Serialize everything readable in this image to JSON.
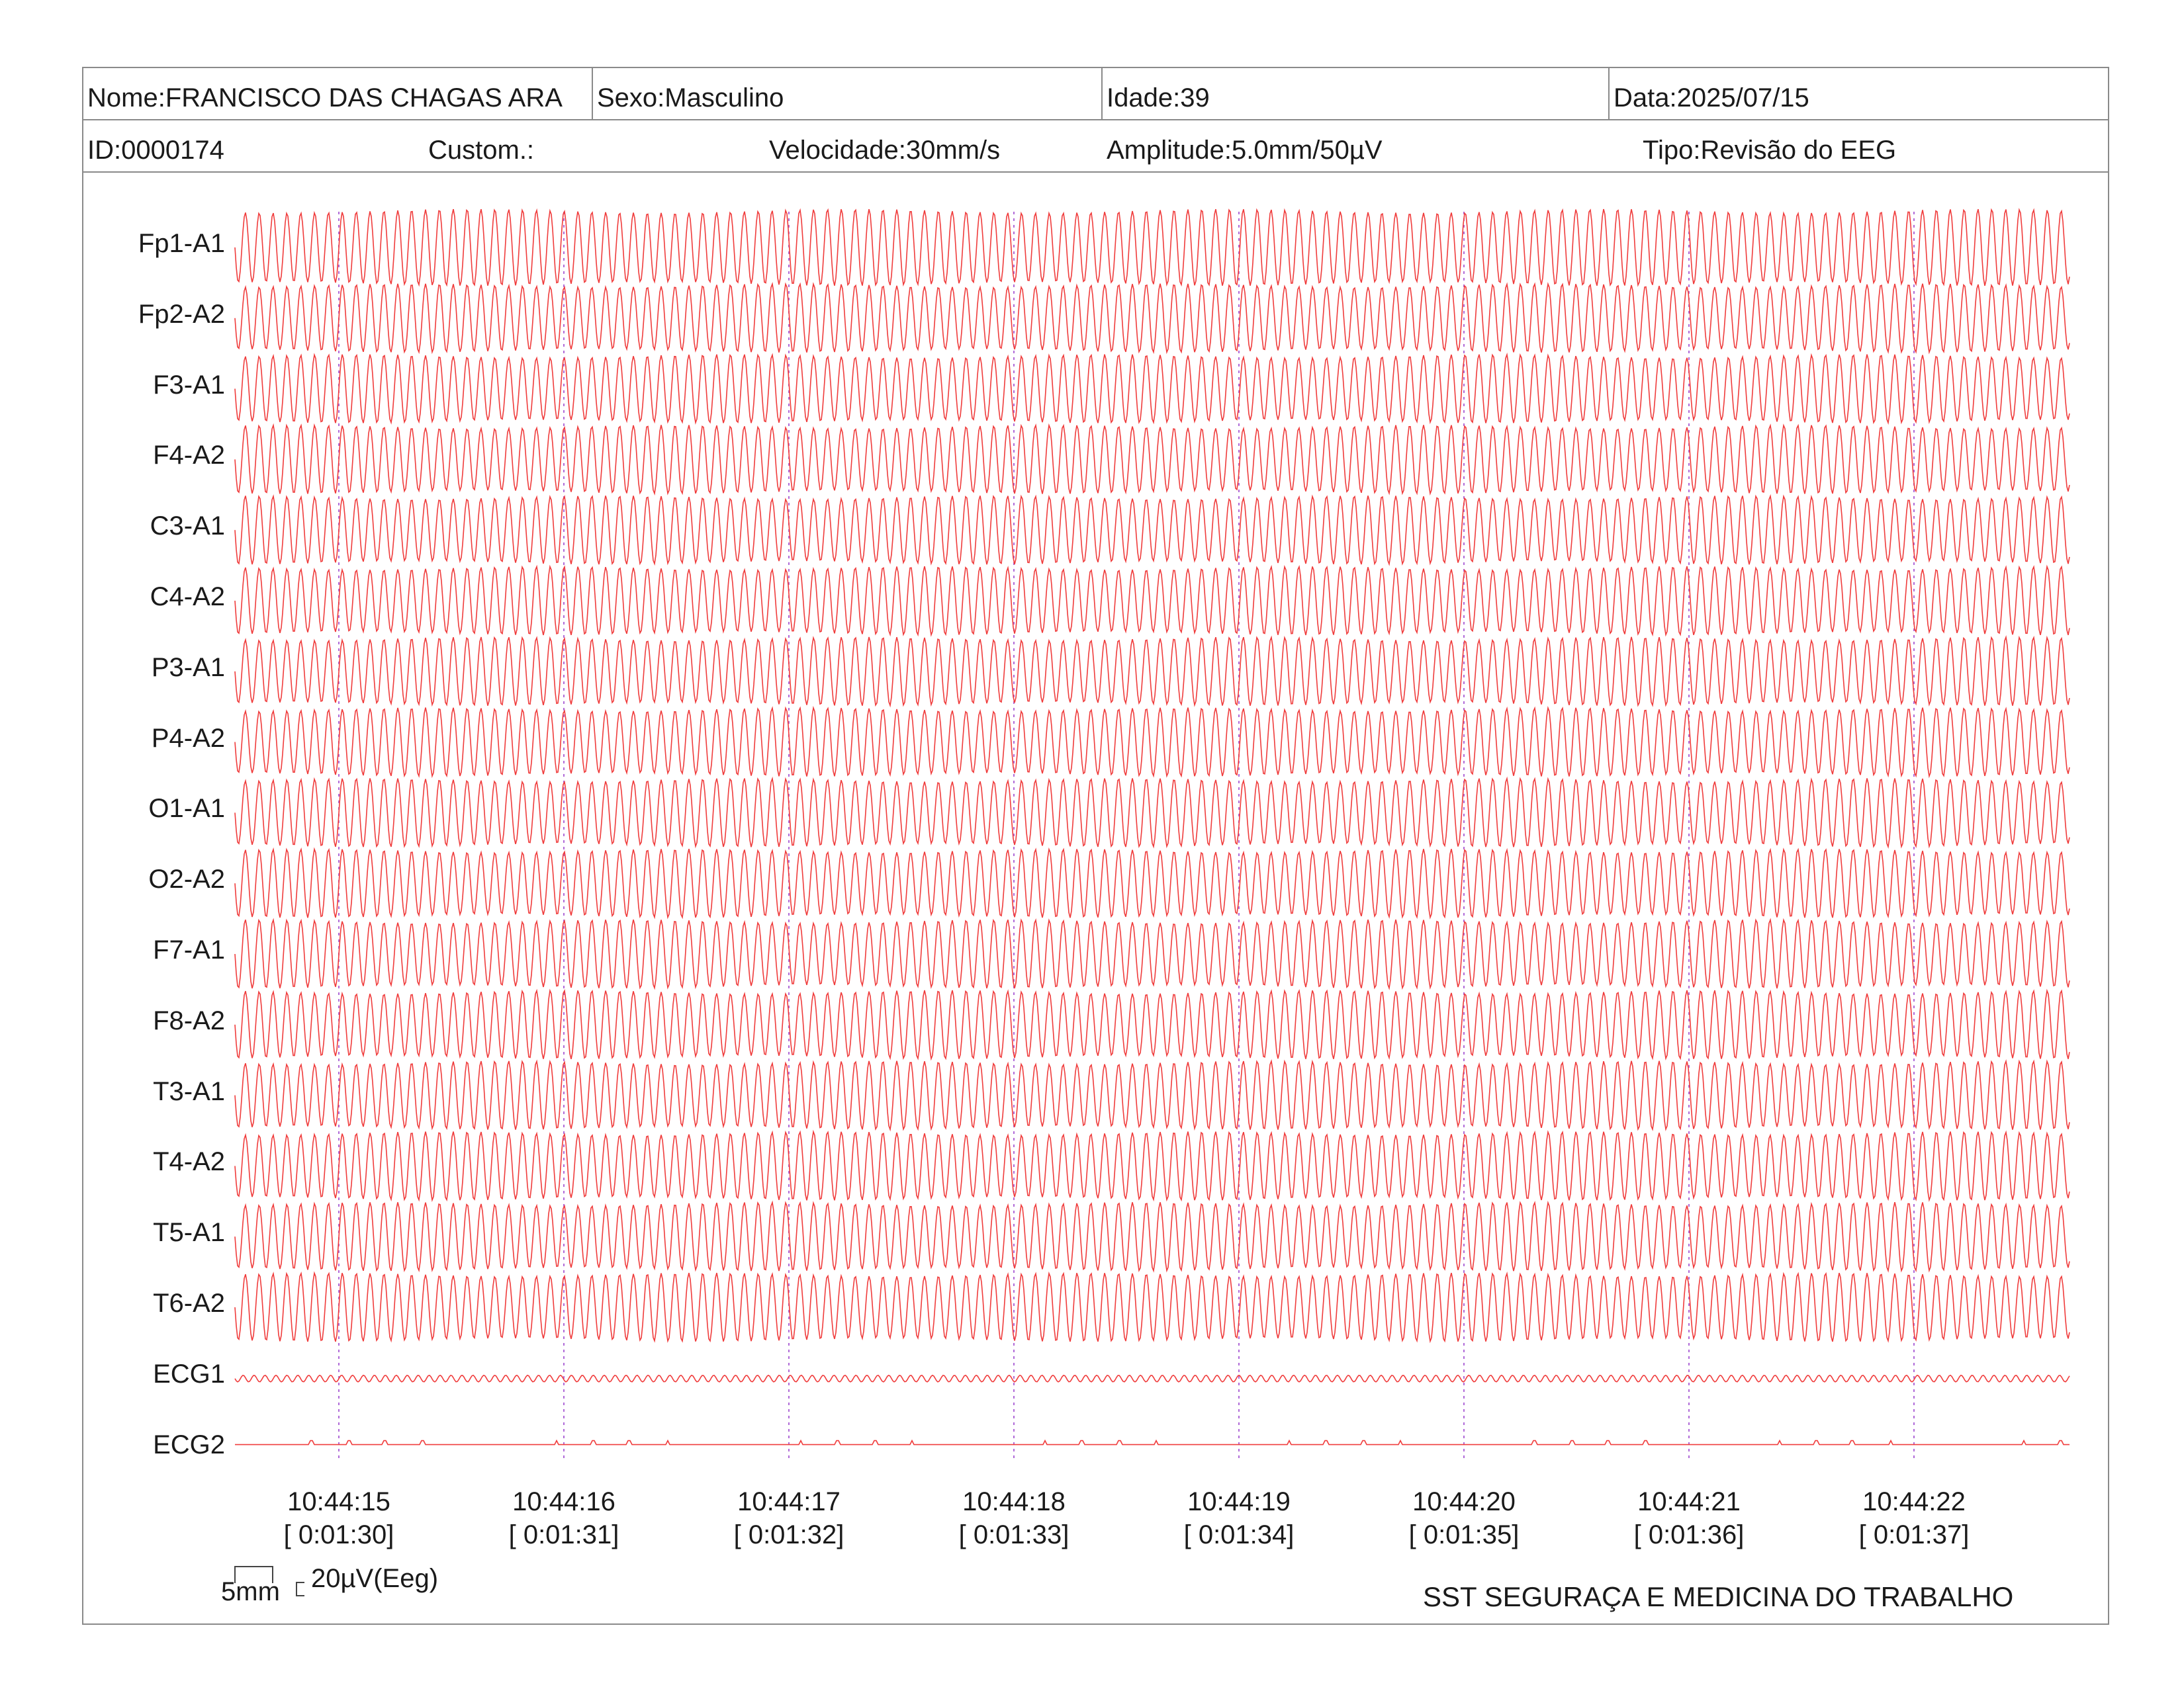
{
  "header": {
    "name": "Nome:FRANCISCO DAS CHAGAS ARA",
    "sex": "Sexo:Masculino",
    "age": "Idade:39",
    "date": "Data:2025/07/15",
    "id": "ID:0000174",
    "custom": "Custom.:",
    "speed": "Velocidade:30mm/s",
    "amplitude": "Amplitude:5.0mm/50µV",
    "type": "Tipo:Revisão do EEG"
  },
  "channels": [
    "Fp1-A1",
    "Fp2-A2",
    "F3-A1",
    "F4-A2",
    "C3-A1",
    "C4-A2",
    "P3-A1",
    "P4-A2",
    "O1-A1",
    "O2-A2",
    "F7-A1",
    "F8-A2",
    "T3-A1",
    "T4-A2",
    "T5-A1",
    "T6-A2",
    "ECG1",
    "ECG2"
  ],
  "time_marks": [
    {
      "clock": "10:44:15",
      "elapsed": "[ 0:01:30]"
    },
    {
      "clock": "10:44:16",
      "elapsed": "[ 0:01:31]"
    },
    {
      "clock": "10:44:17",
      "elapsed": "[ 0:01:32]"
    },
    {
      "clock": "10:44:18",
      "elapsed": "[ 0:01:33]"
    },
    {
      "clock": "10:44:19",
      "elapsed": "[ 0:01:34]"
    },
    {
      "clock": "10:44:20",
      "elapsed": "[ 0:01:35]"
    },
    {
      "clock": "10:44:21",
      "elapsed": "[ 0:01:36]"
    },
    {
      "clock": "10:44:22",
      "elapsed": "[ 0:01:37]"
    }
  ],
  "scale": {
    "mm_label": "5mm",
    "uv_label": "20µV(Eeg)"
  },
  "footer": "SST SEGURAÇA E MEDICINA DO TRABALHO",
  "colors": {
    "trace": "#f03c3c",
    "time_marker": "#b06ad8",
    "border": "#8a8a8a"
  }
}
